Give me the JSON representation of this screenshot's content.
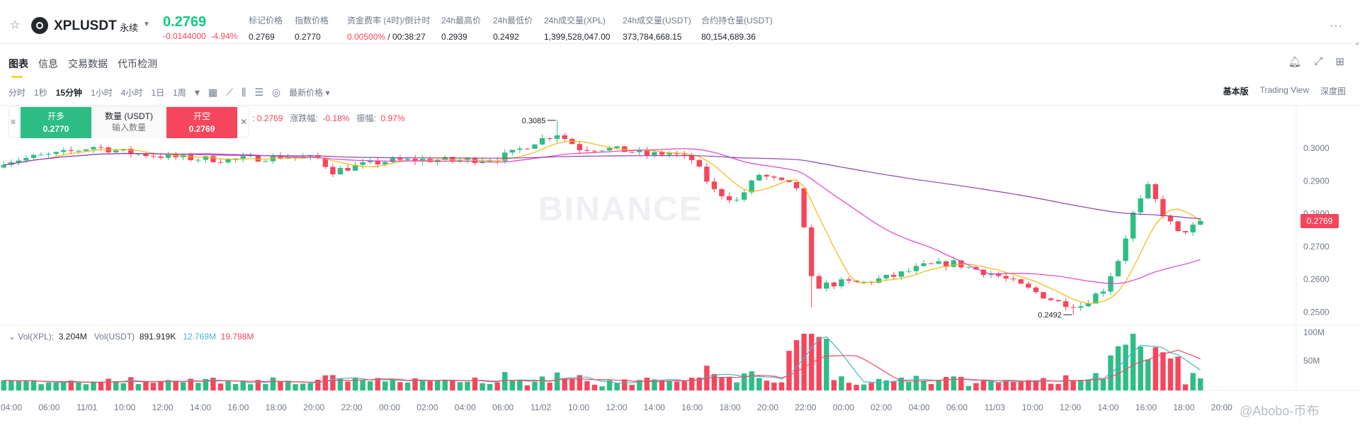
{
  "ticker": {
    "symbol": "XPLUSDT",
    "contract_type": "永续",
    "last_price": "0.2769",
    "change_abs": "-0.0144000",
    "change_pct": "-4.94%",
    "stats": [
      {
        "label": "标记价格",
        "value": "0.2769"
      },
      {
        "label": "指数价格",
        "value": "0.2770"
      },
      {
        "label": "资金费率 (4时)/倒计时",
        "value_red": "0.00500%",
        "value": " / 00:38:27"
      },
      {
        "label": "24h最高价",
        "value": "0.2939"
      },
      {
        "label": "24h最低价",
        "value": "0.2492"
      },
      {
        "label": "24h成交量(XPL)",
        "value": "1,399,528,047.00"
      },
      {
        "label": "24h成交量(USDT)",
        "value": "373,784,668.15"
      },
      {
        "label": "合约持仓量(USDT)",
        "value": "80,154,689.36"
      }
    ]
  },
  "tabs": [
    "图表",
    "信息",
    "交易数据",
    "代币检测"
  ],
  "toolbar": {
    "intervals": [
      "分时",
      "1秒",
      "15分钟",
      "1小时",
      "4小时",
      "1日",
      "1周"
    ],
    "active_interval": "15分钟",
    "price_type": "最新价格",
    "view_modes": [
      "基本版",
      "Trading View",
      "深度图"
    ],
    "active_view": "基本版"
  },
  "order_widget": {
    "long_label": "开多",
    "long_price": "0.2770",
    "qty_label": "数量 (USDT)",
    "qty_placeholder": "输入数量",
    "short_label": "开空",
    "short_price": "0.2769"
  },
  "ohlc_info": {
    "close": "0.2769",
    "change_label": "涨跌幅:",
    "change_value": "-0.18%",
    "amp_label": "振幅:",
    "amp_value": "0.97%"
  },
  "volume_legend": {
    "vol_xpl_label": "Vol(XPL):",
    "vol_xpl": "3.204M",
    "vol_usdt_label": "Vol(USDT)",
    "vol_usdt": "891.919K",
    "ma1": "12.769M",
    "ma2": "19.798M"
  },
  "watermark": "BINANCE",
  "site_mark": "@Abobo-币布",
  "colors": {
    "up": "#2ebd85",
    "down": "#f6465d",
    "ma_fast": "#f0b90b",
    "ma_mid": "#e040c8",
    "ma_slow": "#8e44ad",
    "vol_ma": "#45b7c4"
  },
  "chart_data": {
    "type": "candlestick",
    "price_axis": {
      "ticks": [
        "0.3000",
        "0.2900",
        "0.2800",
        "0.2700",
        "0.2600",
        "0.2500"
      ],
      "range": [
        0.246,
        0.313
      ]
    },
    "volume_axis": {
      "ticks": [
        "100M",
        "50M"
      ]
    },
    "time_axis": [
      "04:00",
      "06:00",
      "11/01",
      "10:00",
      "12:00",
      "14:00",
      "16:00",
      "18:00",
      "20:00",
      "22:00",
      "00:00",
      "02:00",
      "04:00",
      "06:00",
      "11/02",
      "10:00",
      "12:00",
      "14:00",
      "16:00",
      "18:00",
      "20:00",
      "22:00",
      "00:00",
      "02:00",
      "04:00",
      "06:00",
      "11/03",
      "10:00",
      "12:00",
      "14:00",
      "16:00",
      "18:00",
      "20:00"
    ],
    "high_label": "0.3085",
    "low_label": "0.2492",
    "current_price": "0.2769",
    "close_path": [
      [
        0,
        0.296
      ],
      [
        8,
        0.2985
      ],
      [
        12,
        0.3005
      ],
      [
        17,
        0.2985
      ],
      [
        24,
        0.297
      ],
      [
        30,
        0.2965
      ],
      [
        34,
        0.297
      ],
      [
        38,
        0.2975
      ],
      [
        42,
        0.2968
      ],
      [
        44,
        0.293
      ],
      [
        47,
        0.2945
      ],
      [
        51,
        0.296
      ],
      [
        56,
        0.2965
      ],
      [
        61,
        0.2962
      ],
      [
        66,
        0.297
      ],
      [
        68,
        0.2985
      ],
      [
        71,
        0.302
      ],
      [
        74,
        0.3045
      ],
      [
        77,
        0.3
      ],
      [
        80,
        0.3
      ],
      [
        84,
        0.299
      ],
      [
        86,
        0.298
      ],
      [
        89,
        0.2985
      ],
      [
        92,
        0.2965
      ],
      [
        95,
        0.287
      ],
      [
        98,
        0.284
      ],
      [
        101,
        0.292
      ],
      [
        104,
        0.2895
      ],
      [
        106,
        0.288
      ],
      [
        107,
        0.275
      ],
      [
        108,
        0.26
      ],
      [
        109,
        0.258
      ],
      [
        112,
        0.259
      ],
      [
        115,
        0.259
      ],
      [
        119,
        0.261
      ],
      [
        123,
        0.264
      ],
      [
        127,
        0.265
      ],
      [
        130,
        0.263
      ],
      [
        133,
        0.261
      ],
      [
        137,
        0.257
      ],
      [
        141,
        0.253
      ],
      [
        144,
        0.252
      ],
      [
        147,
        0.257
      ],
      [
        149,
        0.266
      ],
      [
        151,
        0.28
      ],
      [
        153,
        0.288
      ],
      [
        155,
        0.28
      ],
      [
        157,
        0.274
      ],
      [
        160,
        0.277
      ]
    ],
    "n_candles": 161
  }
}
